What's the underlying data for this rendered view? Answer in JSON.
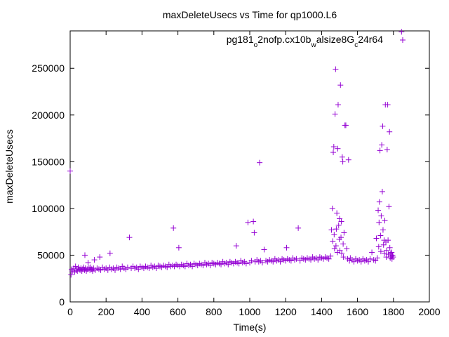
{
  "chart_data": {
    "type": "scatter",
    "title": "maxDeleteUsecs vs Time for qp1000.L6",
    "xlabel": "Time(s)",
    "ylabel": "maxDeleteUsecs",
    "xlim": [
      0,
      2000
    ],
    "ylim": [
      0,
      290000
    ],
    "x_ticks": [
      "0",
      "200",
      "400",
      "600",
      "800",
      "1000",
      "1200",
      "1400",
      "1600",
      "1800",
      "2000"
    ],
    "y_ticks": [
      "0",
      "50000",
      "100000",
      "150000",
      "200000",
      "250000"
    ],
    "x_tick_values": [
      0,
      200,
      400,
      600,
      800,
      1000,
      1200,
      1400,
      1600,
      1800,
      2000
    ],
    "y_tick_values": [
      0,
      50000,
      100000,
      150000,
      200000,
      250000
    ],
    "grid": false,
    "legend_position": "top-right",
    "marker": "plus",
    "color": "#9400d3",
    "series": [
      {
        "name_parts": [
          {
            "text": "pg181",
            "sub": false
          },
          {
            "text": "o",
            "sub": true
          },
          {
            "text": "2nofp.cx10b",
            "sub": false
          },
          {
            "text": "w",
            "sub": true
          },
          {
            "text": "alsize8G",
            "sub": false
          },
          {
            "text": "c",
            "sub": true
          },
          {
            "text": "24r64",
            "sub": false
          }
        ],
        "points": [
          [
            0,
            140000
          ],
          [
            5,
            29000
          ],
          [
            8,
            35000
          ],
          [
            12,
            33000
          ],
          [
            20,
            36000
          ],
          [
            25,
            32000
          ],
          [
            30,
            38000
          ],
          [
            35,
            34000
          ],
          [
            40,
            33000
          ],
          [
            45,
            37000
          ],
          [
            50,
            35000
          ],
          [
            55,
            34000
          ],
          [
            60,
            36000
          ],
          [
            65,
            33000
          ],
          [
            70,
            35000
          ],
          [
            75,
            37000
          ],
          [
            80,
            34000
          ],
          [
            82,
            50000
          ],
          [
            85,
            36000
          ],
          [
            90,
            33000
          ],
          [
            95,
            35000
          ],
          [
            100,
            42000
          ],
          [
            105,
            36000
          ],
          [
            110,
            34000
          ],
          [
            115,
            37000
          ],
          [
            120,
            35000
          ],
          [
            125,
            33000
          ],
          [
            130,
            36000
          ],
          [
            135,
            45000
          ],
          [
            140,
            34000
          ],
          [
            150,
            36000
          ],
          [
            160,
            35000
          ],
          [
            165,
            48000
          ],
          [
            170,
            34000
          ],
          [
            180,
            37000
          ],
          [
            190,
            35000
          ],
          [
            200,
            36000
          ],
          [
            210,
            34000
          ],
          [
            220,
            37000
          ],
          [
            222,
            52000
          ],
          [
            230,
            35000
          ],
          [
            240,
            36000
          ],
          [
            250,
            34000
          ],
          [
            260,
            37000
          ],
          [
            270,
            36000
          ],
          [
            280,
            35000
          ],
          [
            290,
            38000
          ],
          [
            300,
            36000
          ],
          [
            310,
            35000
          ],
          [
            320,
            37000
          ],
          [
            330,
            69000
          ],
          [
            340,
            36000
          ],
          [
            350,
            38000
          ],
          [
            360,
            36000
          ],
          [
            370,
            37000
          ],
          [
            380,
            35000
          ],
          [
            390,
            38000
          ],
          [
            400,
            37000
          ],
          [
            410,
            36000
          ],
          [
            420,
            38000
          ],
          [
            430,
            37000
          ],
          [
            440,
            36000
          ],
          [
            450,
            39000
          ],
          [
            460,
            37000
          ],
          [
            470,
            38000
          ],
          [
            480,
            36000
          ],
          [
            490,
            39000
          ],
          [
            500,
            38000
          ],
          [
            510,
            37000
          ],
          [
            520,
            39000
          ],
          [
            530,
            38000
          ],
          [
            540,
            37000
          ],
          [
            550,
            40000
          ],
          [
            560,
            38000
          ],
          [
            570,
            39000
          ],
          [
            575,
            79000
          ],
          [
            580,
            38000
          ],
          [
            590,
            40000
          ],
          [
            600,
            39000
          ],
          [
            605,
            58000
          ],
          [
            610,
            38000
          ],
          [
            620,
            40000
          ],
          [
            630,
            39000
          ],
          [
            640,
            38000
          ],
          [
            650,
            41000
          ],
          [
            660,
            39000
          ],
          [
            670,
            40000
          ],
          [
            680,
            38000
          ],
          [
            690,
            41000
          ],
          [
            700,
            40000
          ],
          [
            710,
            39000
          ],
          [
            720,
            41000
          ],
          [
            730,
            40000
          ],
          [
            740,
            39000
          ],
          [
            750,
            42000
          ],
          [
            760,
            40000
          ],
          [
            770,
            41000
          ],
          [
            780,
            39000
          ],
          [
            790,
            42000
          ],
          [
            800,
            41000
          ],
          [
            810,
            40000
          ],
          [
            820,
            42000
          ],
          [
            830,
            41000
          ],
          [
            840,
            40000
          ],
          [
            850,
            43000
          ],
          [
            860,
            41000
          ],
          [
            870,
            42000
          ],
          [
            880,
            40000
          ],
          [
            890,
            43000
          ],
          [
            900,
            42000
          ],
          [
            910,
            41000
          ],
          [
            920,
            43000
          ],
          [
            925,
            60000
          ],
          [
            930,
            42000
          ],
          [
            940,
            41000
          ],
          [
            950,
            44000
          ],
          [
            960,
            42000
          ],
          [
            970,
            43000
          ],
          [
            980,
            41000
          ],
          [
            990,
            85000
          ],
          [
            1000,
            42000
          ],
          [
            1010,
            44000
          ],
          [
            1020,
            86000
          ],
          [
            1025,
            74000
          ],
          [
            1030,
            43000
          ],
          [
            1040,
            45000
          ],
          [
            1050,
            43000
          ],
          [
            1055,
            149000
          ],
          [
            1060,
            44000
          ],
          [
            1070,
            42000
          ],
          [
            1080,
            56000
          ],
          [
            1090,
            44000
          ],
          [
            1100,
            43000
          ],
          [
            1110,
            45000
          ],
          [
            1120,
            44000
          ],
          [
            1130,
            43000
          ],
          [
            1140,
            46000
          ],
          [
            1150,
            44000
          ],
          [
            1160,
            45000
          ],
          [
            1170,
            43000
          ],
          [
            1180,
            46000
          ],
          [
            1190,
            45000
          ],
          [
            1200,
            44000
          ],
          [
            1205,
            58000
          ],
          [
            1210,
            46000
          ],
          [
            1220,
            45000
          ],
          [
            1230,
            44000
          ],
          [
            1240,
            47000
          ],
          [
            1250,
            45000
          ],
          [
            1260,
            46000
          ],
          [
            1270,
            79000
          ],
          [
            1280,
            44000
          ],
          [
            1290,
            47000
          ],
          [
            1300,
            46000
          ],
          [
            1310,
            45000
          ],
          [
            1320,
            47000
          ],
          [
            1330,
            46000
          ],
          [
            1340,
            45000
          ],
          [
            1350,
            48000
          ],
          [
            1360,
            46000
          ],
          [
            1370,
            47000
          ],
          [
            1380,
            45000
          ],
          [
            1390,
            48000
          ],
          [
            1400,
            47000
          ],
          [
            1410,
            46000
          ],
          [
            1420,
            48000
          ],
          [
            1430,
            47000
          ],
          [
            1440,
            46000
          ],
          [
            1450,
            49000
          ],
          [
            1455,
            77000
          ],
          [
            1460,
            100000
          ],
          [
            1462,
            65000
          ],
          [
            1465,
            160000
          ],
          [
            1468,
            166000
          ],
          [
            1470,
            72000
          ],
          [
            1472,
            57000
          ],
          [
            1475,
            201000
          ],
          [
            1478,
            249000
          ],
          [
            1480,
            60000
          ],
          [
            1482,
            78000
          ],
          [
            1485,
            95000
          ],
          [
            1488,
            53000
          ],
          [
            1490,
            164000
          ],
          [
            1492,
            211000
          ],
          [
            1495,
            82000
          ],
          [
            1498,
            67000
          ],
          [
            1500,
            89000
          ],
          [
            1502,
            55000
          ],
          [
            1505,
            232000
          ],
          [
            1508,
            69000
          ],
          [
            1510,
            86000
          ],
          [
            1512,
            52000
          ],
          [
            1515,
            155000
          ],
          [
            1518,
            150000
          ],
          [
            1520,
            62000
          ],
          [
            1522,
            48000
          ],
          [
            1525,
            74000
          ],
          [
            1530,
            189000
          ],
          [
            1535,
            189000
          ],
          [
            1540,
            57000
          ],
          [
            1545,
            46000
          ],
          [
            1550,
            152000
          ],
          [
            1555,
            44000
          ],
          [
            1560,
            47000
          ],
          [
            1570,
            45000
          ],
          [
            1580,
            43000
          ],
          [
            1590,
            46000
          ],
          [
            1600,
            44000
          ],
          [
            1610,
            45000
          ],
          [
            1620,
            43000
          ],
          [
            1630,
            46000
          ],
          [
            1640,
            44000
          ],
          [
            1650,
            45000
          ],
          [
            1660,
            43000
          ],
          [
            1670,
            46000
          ],
          [
            1680,
            53000
          ],
          [
            1690,
            45000
          ],
          [
            1700,
            44000
          ],
          [
            1705,
            68000
          ],
          [
            1710,
            47000
          ],
          [
            1715,
            98000
          ],
          [
            1718,
            59000
          ],
          [
            1720,
            85000
          ],
          [
            1722,
            107000
          ],
          [
            1725,
            162000
          ],
          [
            1728,
            71000
          ],
          [
            1730,
            54000
          ],
          [
            1732,
            92000
          ],
          [
            1735,
            168000
          ],
          [
            1738,
            118000
          ],
          [
            1740,
            188000
          ],
          [
            1742,
            77000
          ],
          [
            1745,
            61000
          ],
          [
            1748,
            66000
          ],
          [
            1750,
            52000
          ],
          [
            1752,
            87000
          ],
          [
            1755,
            211000
          ],
          [
            1758,
            64000
          ],
          [
            1760,
            48000
          ],
          [
            1762,
            55000
          ],
          [
            1765,
            163000
          ],
          [
            1768,
            211000
          ],
          [
            1770,
            66000
          ],
          [
            1772,
            51000
          ],
          [
            1775,
            102000
          ],
          [
            1778,
            182000
          ],
          [
            1780,
            58000
          ],
          [
            1782,
            47000
          ],
          [
            1785,
            52000
          ],
          [
            1788,
            49000
          ],
          [
            1790,
            53000
          ],
          [
            1792,
            46000
          ],
          [
            1795,
            50000
          ],
          [
            1798,
            48000
          ],
          [
            1845,
            289000
          ]
        ]
      }
    ]
  }
}
